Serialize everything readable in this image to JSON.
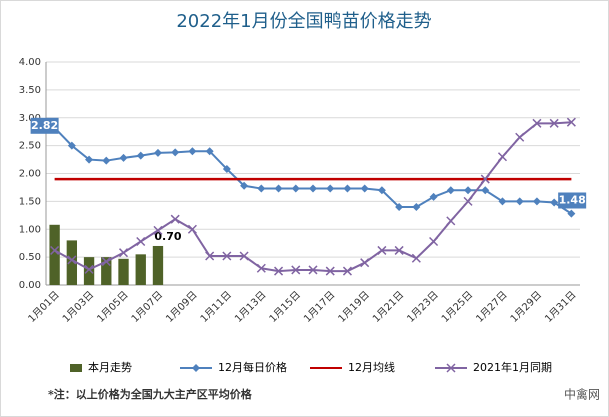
{
  "chart_data": {
    "type": "line",
    "title": "2022年1月份全国鸭苗价格走势",
    "categories": [
      "1月01日",
      null,
      "1月03日",
      null,
      "1月05日",
      null,
      "1月07日",
      null,
      "1月09日",
      null,
      "1月11日",
      null,
      "1月13日",
      null,
      "1月15日",
      null,
      "1月17日",
      null,
      "1月19日",
      null,
      "1月21日",
      null,
      "1月23日",
      null,
      "1月25日",
      null,
      "1月27日",
      null,
      "1月29日",
      null,
      "1月31日"
    ],
    "ylim": [
      0,
      4
    ],
    "yticks": [
      {
        "value": 0,
        "label": "0.00"
      },
      {
        "value": 0.5,
        "label": "0.50"
      },
      {
        "value": 1,
        "label": "1.00"
      },
      {
        "value": 1.5,
        "label": "1.50"
      },
      {
        "value": 2,
        "label": "2.00"
      },
      {
        "value": 2.5,
        "label": "2.50"
      },
      {
        "value": 3,
        "label": "3.00"
      },
      {
        "value": 3.5,
        "label": "3.50"
      },
      {
        "value": 4,
        "label": "4.00"
      }
    ],
    "grid": true,
    "legend": "bottom",
    "series": [
      {
        "name": "本月走势",
        "kind": "bar",
        "color": "#4f6228",
        "values": [
          1.08,
          0.8,
          0.5,
          0.5,
          0.47,
          0.55,
          0.7,
          null,
          null,
          null,
          null,
          null,
          null,
          null,
          null,
          null,
          null,
          null,
          null,
          null,
          null,
          null,
          null,
          null,
          null,
          null,
          null,
          null,
          null,
          null,
          null
        ],
        "value_labels": [
          null,
          null,
          null,
          null,
          null,
          null,
          "0.70",
          null,
          null,
          null,
          null,
          null,
          null,
          null,
          null,
          null,
          null,
          null,
          null,
          null,
          null,
          null,
          null,
          null,
          null,
          null,
          null,
          null,
          null,
          null,
          null
        ]
      },
      {
        "name": "12月每日价格",
        "kind": "line",
        "marker": "diamond",
        "color": "#4f81bd",
        "values": [
          2.82,
          2.5,
          2.25,
          2.23,
          2.28,
          2.32,
          2.37,
          2.38,
          2.4,
          2.4,
          2.08,
          1.78,
          1.73,
          1.73,
          1.73,
          1.73,
          1.73,
          1.73,
          1.73,
          1.7,
          1.4,
          1.4,
          1.58,
          1.7,
          1.7,
          1.7,
          1.5,
          1.5,
          1.5,
          1.48,
          1.28
        ],
        "value_labels": [
          "2.82",
          null,
          null,
          null,
          null,
          null,
          null,
          null,
          null,
          null,
          null,
          null,
          null,
          null,
          null,
          null,
          null,
          null,
          null,
          null,
          null,
          null,
          null,
          null,
          null,
          null,
          null,
          null,
          null,
          "1.48",
          null
        ]
      },
      {
        "name": "12月均线",
        "kind": "line",
        "marker": "none",
        "color": "#c00000",
        "values": [
          1.9,
          1.9,
          1.9,
          1.9,
          1.9,
          1.9,
          1.9,
          1.9,
          1.9,
          1.9,
          1.9,
          1.9,
          1.9,
          1.9,
          1.9,
          1.9,
          1.9,
          1.9,
          1.9,
          1.9,
          1.9,
          1.9,
          1.9,
          1.9,
          1.9,
          1.9,
          1.9,
          1.9,
          1.9,
          1.9,
          1.9
        ]
      },
      {
        "name": "2021年1月同期",
        "kind": "line",
        "marker": "x",
        "color": "#8064a2",
        "values": [
          0.62,
          0.45,
          0.28,
          0.42,
          0.58,
          0.78,
          0.98,
          1.18,
          1.0,
          0.52,
          0.52,
          0.52,
          0.3,
          0.25,
          0.27,
          0.27,
          0.25,
          0.25,
          0.4,
          0.62,
          0.62,
          0.48,
          0.78,
          1.15,
          1.5,
          1.9,
          2.3,
          2.65,
          2.9,
          2.9,
          2.92
        ]
      }
    ],
    "footnote": "*注：以上价格为全国九大主产区平均价格",
    "watermark": "中禽网"
  }
}
